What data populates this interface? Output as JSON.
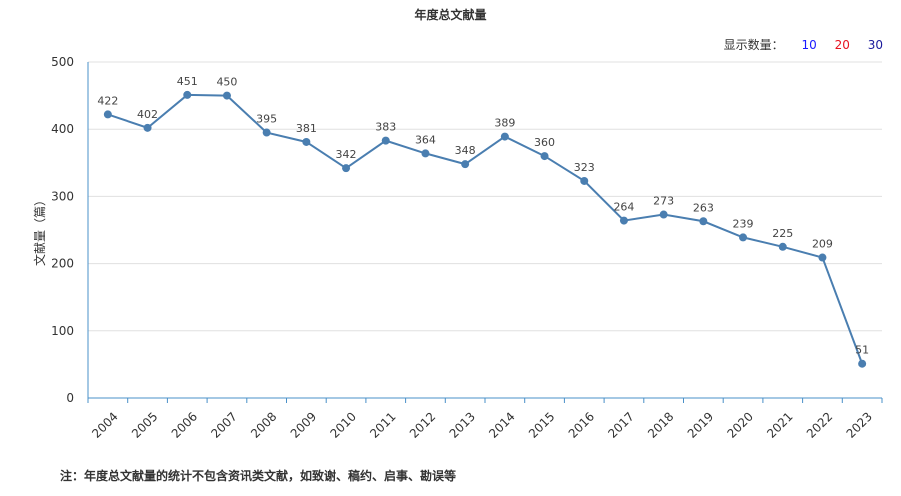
{
  "header": {
    "title": "年度总文献量"
  },
  "display_count": {
    "label": "显示数量：",
    "options": [
      {
        "label": "10",
        "color": "#1a1aff"
      },
      {
        "label": "20",
        "color": "#e8121f"
      },
      {
        "label": "30",
        "color": "#1a1a9c"
      }
    ]
  },
  "footnote": "注：年度总文献量的统计不包含资讯类文献，如致谢、稿约、启事、勘误等",
  "chart_data": {
    "type": "line",
    "title": "年度总文献量",
    "xlabel": "",
    "ylabel": "文献量（篇）",
    "ylim": [
      0,
      500
    ],
    "yticks": [
      0,
      100,
      200,
      300,
      400,
      500
    ],
    "grid": true,
    "line_color": "#4a7eb0",
    "categories": [
      "2004",
      "2005",
      "2006",
      "2007",
      "2008",
      "2009",
      "2010",
      "2011",
      "2012",
      "2013",
      "2014",
      "2015",
      "2016",
      "2017",
      "2018",
      "2019",
      "2020",
      "2021",
      "2022",
      "2023"
    ],
    "values": [
      422,
      402,
      451,
      450,
      395,
      381,
      342,
      383,
      364,
      348,
      389,
      360,
      323,
      264,
      273,
      263,
      239,
      225,
      209,
      51
    ]
  }
}
